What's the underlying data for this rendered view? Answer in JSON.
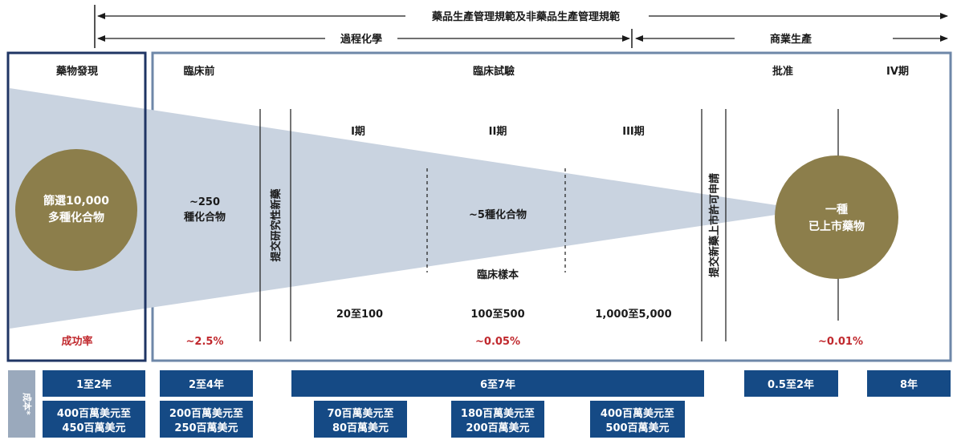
{
  "top_arrows": {
    "gmp": "藥品生產管理規範及非藥品生產管理規範",
    "process_chem": "過程化學",
    "commercial": "商業生產"
  },
  "stages": {
    "discovery": "藥物發現",
    "preclinical": "臨床前",
    "clinical": "臨床試驗",
    "approval": "批准",
    "phase4": "IV期"
  },
  "phases": {
    "p1": "I期",
    "p2": "II期",
    "p3": "III期"
  },
  "circles": {
    "left_line1": "篩選10,000",
    "left_line2": "多種化合物",
    "right_line1": "一種",
    "right_line2": "已上市藥物"
  },
  "funnel": {
    "preclinical_line1": "~250",
    "preclinical_line2": "種化合物",
    "clinical": "~5種化合物",
    "sample_label": "臨床樣本"
  },
  "sample_sizes": {
    "p1": "20至100",
    "p2": "100至500",
    "p3": "1,000至5,000"
  },
  "milestones": {
    "ind": "提交研究性新藥",
    "nda": "提交新藥上市許可申請"
  },
  "success": {
    "label": "成功率",
    "preclinical": "~2.5%",
    "clinical": "~0.05%",
    "approval": "~0.01%"
  },
  "cost_label": "成本*",
  "durations": {
    "discovery": "1至2年",
    "preclinical": "2至4年",
    "clinical": "6至7年",
    "approval": "0.5至2年",
    "phase4": "8年"
  },
  "costs": {
    "discovery_1": "400百萬美元至",
    "discovery_2": "450百萬美元",
    "preclinical_1": "200百萬美元至",
    "preclinical_2": "250百萬美元",
    "p1_1": "70百萬美元至",
    "p1_2": "80百萬美元",
    "p2_1": "180百萬美元至",
    "p2_2": "200百萬美元",
    "p3_1": "400百萬美元至",
    "p3_2": "500百萬美元"
  },
  "colors": {
    "navy": "#1f3564",
    "frame_blue": "#6e87a8",
    "funnel": "#c9d3e0",
    "olive": "#8c7e4b",
    "box_blue": "#154a85",
    "red": "#c0282d"
  }
}
